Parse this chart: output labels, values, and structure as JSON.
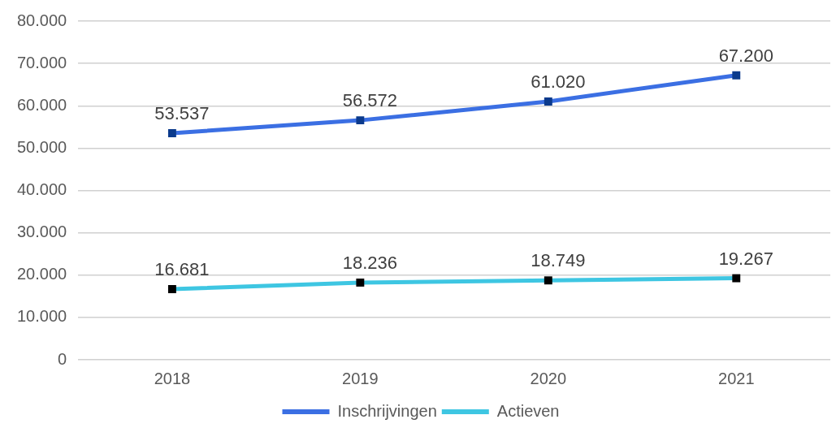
{
  "chart_data": {
    "type": "line",
    "categories": [
      "2018",
      "2019",
      "2020",
      "2021"
    ],
    "series": [
      {
        "name": "Inschrijvingen",
        "color": "#3b6fe3",
        "colors": [
          "#0b3a8c",
          "#0b3a8c",
          "#0b3a8c",
          "#0b3a8c"
        ],
        "values": [
          53537,
          56572,
          61020,
          67200
        ],
        "value_labels": [
          "53.537",
          "56.572",
          "61.020",
          "67.200"
        ]
      },
      {
        "name": "Actieven",
        "color": "#3ec6e2",
        "colors": [
          "#000000",
          "#000000",
          "#000000",
          "#000000"
        ],
        "values": [
          16681,
          18236,
          18749,
          19267
        ],
        "value_labels": [
          "16.681",
          "18.236",
          "18.749",
          "19.267"
        ]
      }
    ],
    "ylim": [
      0,
      80000
    ],
    "yticks": [
      0,
      {
        "value": 10000,
        "label": "10.000"
      },
      {
        "value": 20000,
        "label": "20.000"
      },
      {
        "value": 30000,
        "label": "30.000"
      },
      {
        "value": 40000,
        "label": "40.000"
      },
      {
        "value": 50000,
        "label": "50.000"
      },
      {
        "value": 60000,
        "label": "60.000"
      },
      {
        "value": 70000,
        "label": "70.000"
      },
      {
        "value": 80000,
        "label": "80.000"
      }
    ],
    "grid": "y",
    "legend": "bottom",
    "marker": "square",
    "line_style": "solid"
  }
}
